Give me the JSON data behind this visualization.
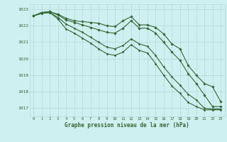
{
  "hours": [
    0,
    1,
    2,
    3,
    4,
    5,
    6,
    7,
    8,
    9,
    10,
    11,
    12,
    13,
    14,
    15,
    16,
    17,
    18,
    19,
    20,
    21,
    22,
    23
  ],
  "line1": [
    1022.6,
    1022.8,
    1022.85,
    1022.7,
    1022.45,
    1022.3,
    1022.25,
    1022.2,
    1022.15,
    1022.0,
    1021.95,
    1022.3,
    1022.55,
    1022.05,
    1022.05,
    1021.9,
    1021.5,
    1020.9,
    1020.6,
    1019.6,
    1019.0,
    1018.5,
    1018.3,
    1017.4
  ],
  "line2": [
    1022.6,
    1022.8,
    1022.85,
    1022.65,
    1022.35,
    1022.2,
    1022.05,
    1021.9,
    1021.75,
    1021.6,
    1021.55,
    1021.85,
    1022.3,
    1021.85,
    1021.85,
    1021.55,
    1021.0,
    1020.4,
    1019.9,
    1019.1,
    1018.5,
    1017.8,
    1017.1,
    1017.1
  ],
  "line3": [
    1022.6,
    1022.75,
    1022.8,
    1022.5,
    1022.1,
    1021.85,
    1021.6,
    1021.3,
    1021.0,
    1020.7,
    1020.6,
    1020.8,
    1021.2,
    1020.9,
    1020.75,
    1020.2,
    1019.5,
    1018.9,
    1018.4,
    1017.85,
    1017.5,
    1017.0,
    1016.95,
    1016.95
  ],
  "line4": [
    1022.6,
    1022.75,
    1022.8,
    1022.4,
    1021.8,
    1021.55,
    1021.25,
    1020.95,
    1020.6,
    1020.3,
    1020.2,
    1020.4,
    1020.85,
    1020.5,
    1020.35,
    1019.7,
    1019.0,
    1018.35,
    1017.9,
    1017.35,
    1017.1,
    1016.9,
    1016.9,
    1016.9
  ],
  "bg_color": "#cff0f0",
  "grid_color": "#b0d8d8",
  "line_color": "#336633",
  "xlabel": "Graphe pression niveau de la mer (hPa)",
  "xlabel_color": "#336633",
  "tick_color": "#336633",
  "ylim": [
    1016.5,
    1023.3
  ],
  "yticks": [
    1017,
    1018,
    1019,
    1020,
    1021,
    1022,
    1023
  ],
  "xlim": [
    -0.5,
    23.5
  ]
}
